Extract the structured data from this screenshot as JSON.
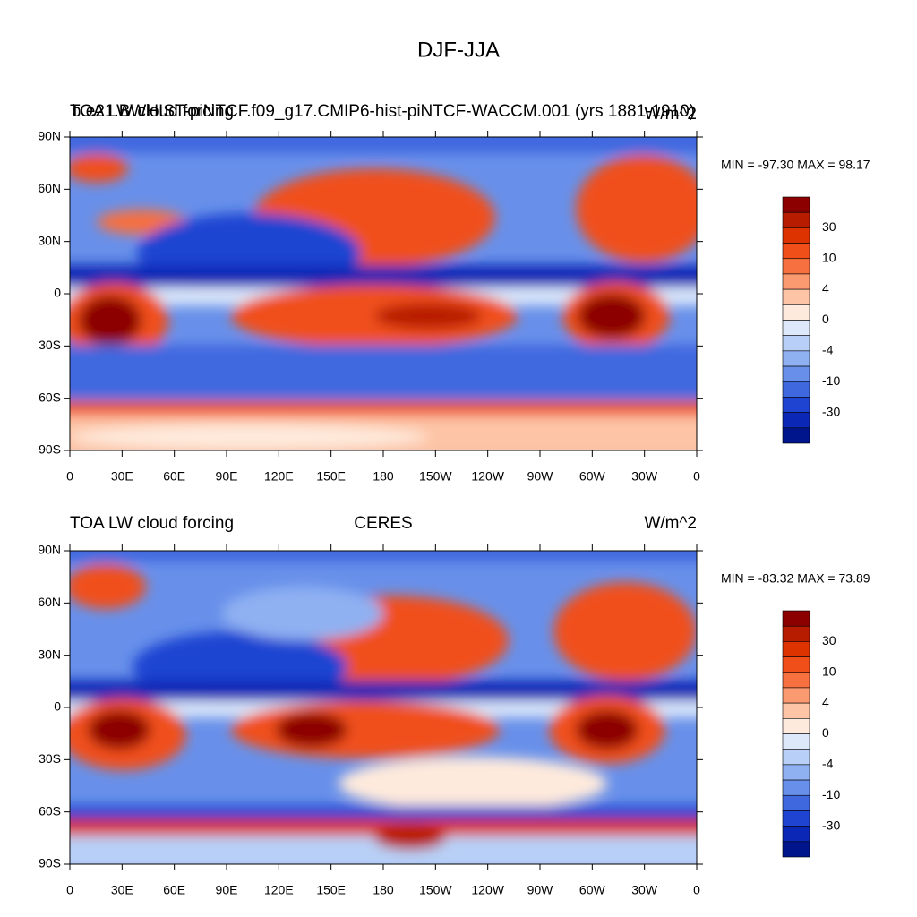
{
  "title": "DJF-JJA",
  "chart_data": [
    {
      "type": "contour-map",
      "left_string": "TOA LW cloud forcing",
      "center_string": "b.e21.BWHIST-piNTCF.f09_g17.CMIP6-hist-piNTCF-WACCM.001 (yrs 1881-1910)",
      "right_string": "W/m^2",
      "stats": "MIN = -97.30 MAX =  98.17",
      "xlim": [
        0,
        360
      ],
      "xticks": [
        0,
        {
          "value": 30,
          "label": "30E"
        },
        {
          "value": 60,
          "label": "60E"
        },
        {
          "value": 90,
          "label": "90E"
        },
        {
          "value": 120,
          "label": "120E"
        },
        {
          "value": 150,
          "label": "150E"
        },
        {
          "value": 180,
          "label": "180"
        },
        {
          "value": 210,
          "label": "150W"
        },
        {
          "value": 240,
          "label": "120W"
        },
        {
          "value": 270,
          "label": "90W"
        },
        {
          "value": 300,
          "label": "60W"
        },
        {
          "value": 330,
          "label": "30W"
        },
        {
          "value": 360,
          "label": "0"
        }
      ],
      "ylim": [
        -90,
        90
      ],
      "yticks": [
        {
          "value": -90,
          "label": "90S"
        },
        {
          "value": -60,
          "label": "60S"
        },
        {
          "value": -30,
          "label": "30S"
        },
        0,
        {
          "value": 30,
          "label": "30N"
        },
        {
          "value": 60,
          "label": "60N"
        },
        {
          "value": 90,
          "label": "90N"
        }
      ],
      "colorbar": {
        "colors": [
          "#8c0000",
          "#b81c00",
          "#dc3300",
          "#f04f1a",
          "#f77040",
          "#fb9a70",
          "#fdc4a6",
          "#feeadc",
          "#dde9fb",
          "#b8d0f7",
          "#8fb1f2",
          "#6890ea",
          "#3f68df",
          "#1f44d2",
          "#0b27b5",
          "#00148c"
        ],
        "ticks": [
          30,
          10,
          4,
          0,
          -4,
          -10,
          -30
        ]
      }
    },
    {
      "type": "contour-map",
      "left_string": "TOA LW cloud forcing",
      "center_string": "CERES",
      "right_string": "W/m^2",
      "stats": "MIN = -83.32 MAX =  73.89",
      "xlim": [
        0,
        360
      ],
      "xticks": [
        0,
        {
          "value": 30,
          "label": "30E"
        },
        {
          "value": 60,
          "label": "60E"
        },
        {
          "value": 90,
          "label": "90E"
        },
        {
          "value": 120,
          "label": "120E"
        },
        {
          "value": 150,
          "label": "150E"
        },
        {
          "value": 180,
          "label": "180"
        },
        {
          "value": 210,
          "label": "150W"
        },
        {
          "value": 240,
          "label": "120W"
        },
        {
          "value": 270,
          "label": "90W"
        },
        {
          "value": 300,
          "label": "60W"
        },
        {
          "value": 330,
          "label": "30W"
        },
        {
          "value": 360,
          "label": "0"
        }
      ],
      "ylim": [
        -90,
        90
      ],
      "yticks": [
        {
          "value": -90,
          "label": "90S"
        },
        {
          "value": -60,
          "label": "60S"
        },
        {
          "value": -30,
          "label": "30S"
        },
        0,
        {
          "value": 30,
          "label": "30N"
        },
        {
          "value": 60,
          "label": "60N"
        },
        {
          "value": 90,
          "label": "90N"
        }
      ],
      "colorbar": {
        "colors": [
          "#8c0000",
          "#b81c00",
          "#dc3300",
          "#f04f1a",
          "#f77040",
          "#fb9a70",
          "#fdc4a6",
          "#feeadc",
          "#dde9fb",
          "#b8d0f7",
          "#8fb1f2",
          "#6890ea",
          "#3f68df",
          "#1f44d2",
          "#0b27b5",
          "#00148c"
        ],
        "ticks": [
          30,
          10,
          4,
          0,
          -4,
          -10,
          -30
        ]
      }
    }
  ]
}
